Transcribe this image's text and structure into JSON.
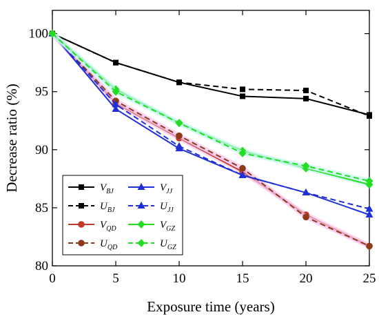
{
  "chart_data": {
    "type": "line",
    "xlabel": "Exposure time (years)",
    "ylabel": "Decrease ratio (%)",
    "xlim": [
      0,
      25
    ],
    "ylim": [
      80,
      102
    ],
    "xticks": [
      0,
      5,
      10,
      15,
      20,
      25
    ],
    "yticks": [
      80,
      85,
      90,
      95,
      100
    ],
    "grid": false,
    "legend_position": "bottom-left",
    "x": [
      0,
      5,
      10,
      15,
      20,
      25
    ],
    "series": [
      {
        "name": "V",
        "subscript": "BJ",
        "values": [
          100,
          97.5,
          95.8,
          94.6,
          94.4,
          93.0
        ],
        "color": "#000000",
        "line": "solid",
        "marker": "square"
      },
      {
        "name": "U",
        "subscript": "BJ",
        "values": [
          100,
          97.5,
          95.8,
          95.2,
          95.1,
          92.9
        ],
        "color": "#000000",
        "line": "dashed",
        "marker": "square"
      },
      {
        "name": "V",
        "subscript": "QD",
        "values": [
          100,
          94.0,
          91.0,
          88.1,
          84.4,
          81.7
        ],
        "color": "#c0392b",
        "line": "solid",
        "marker": "circle",
        "halo": "#f7c6ee"
      },
      {
        "name": "U",
        "subscript": "QD",
        "values": [
          100,
          94.2,
          91.2,
          88.4,
          84.2,
          81.7
        ],
        "color": "#8b3a1a",
        "line": "dashed",
        "marker": "circle",
        "halo": "#f7c6ee"
      },
      {
        "name": "V",
        "subscript": "JJ",
        "values": [
          100,
          93.5,
          90.1,
          87.8,
          86.3,
          84.4
        ],
        "color": "#1f2fd6",
        "line": "solid",
        "marker": "triangle"
      },
      {
        "name": "U",
        "subscript": "JJ",
        "values": [
          100,
          93.9,
          90.3,
          87.8,
          86.3,
          84.9
        ],
        "color": "#1f2fd6",
        "line": "dashed",
        "marker": "triangle"
      },
      {
        "name": "V",
        "subscript": "GZ",
        "values": [
          100,
          95.2,
          92.3,
          89.9,
          88.4,
          87.0
        ],
        "color": "#22dd22",
        "line": "solid",
        "marker": "diamond",
        "halo": "#c8f7f0"
      },
      {
        "name": "U",
        "subscript": "GZ",
        "values": [
          100,
          95.0,
          92.3,
          89.7,
          88.6,
          87.3
        ],
        "color": "#22dd22",
        "line": "dashed",
        "marker": "diamond",
        "halo": "#c8f7f0"
      }
    ]
  }
}
